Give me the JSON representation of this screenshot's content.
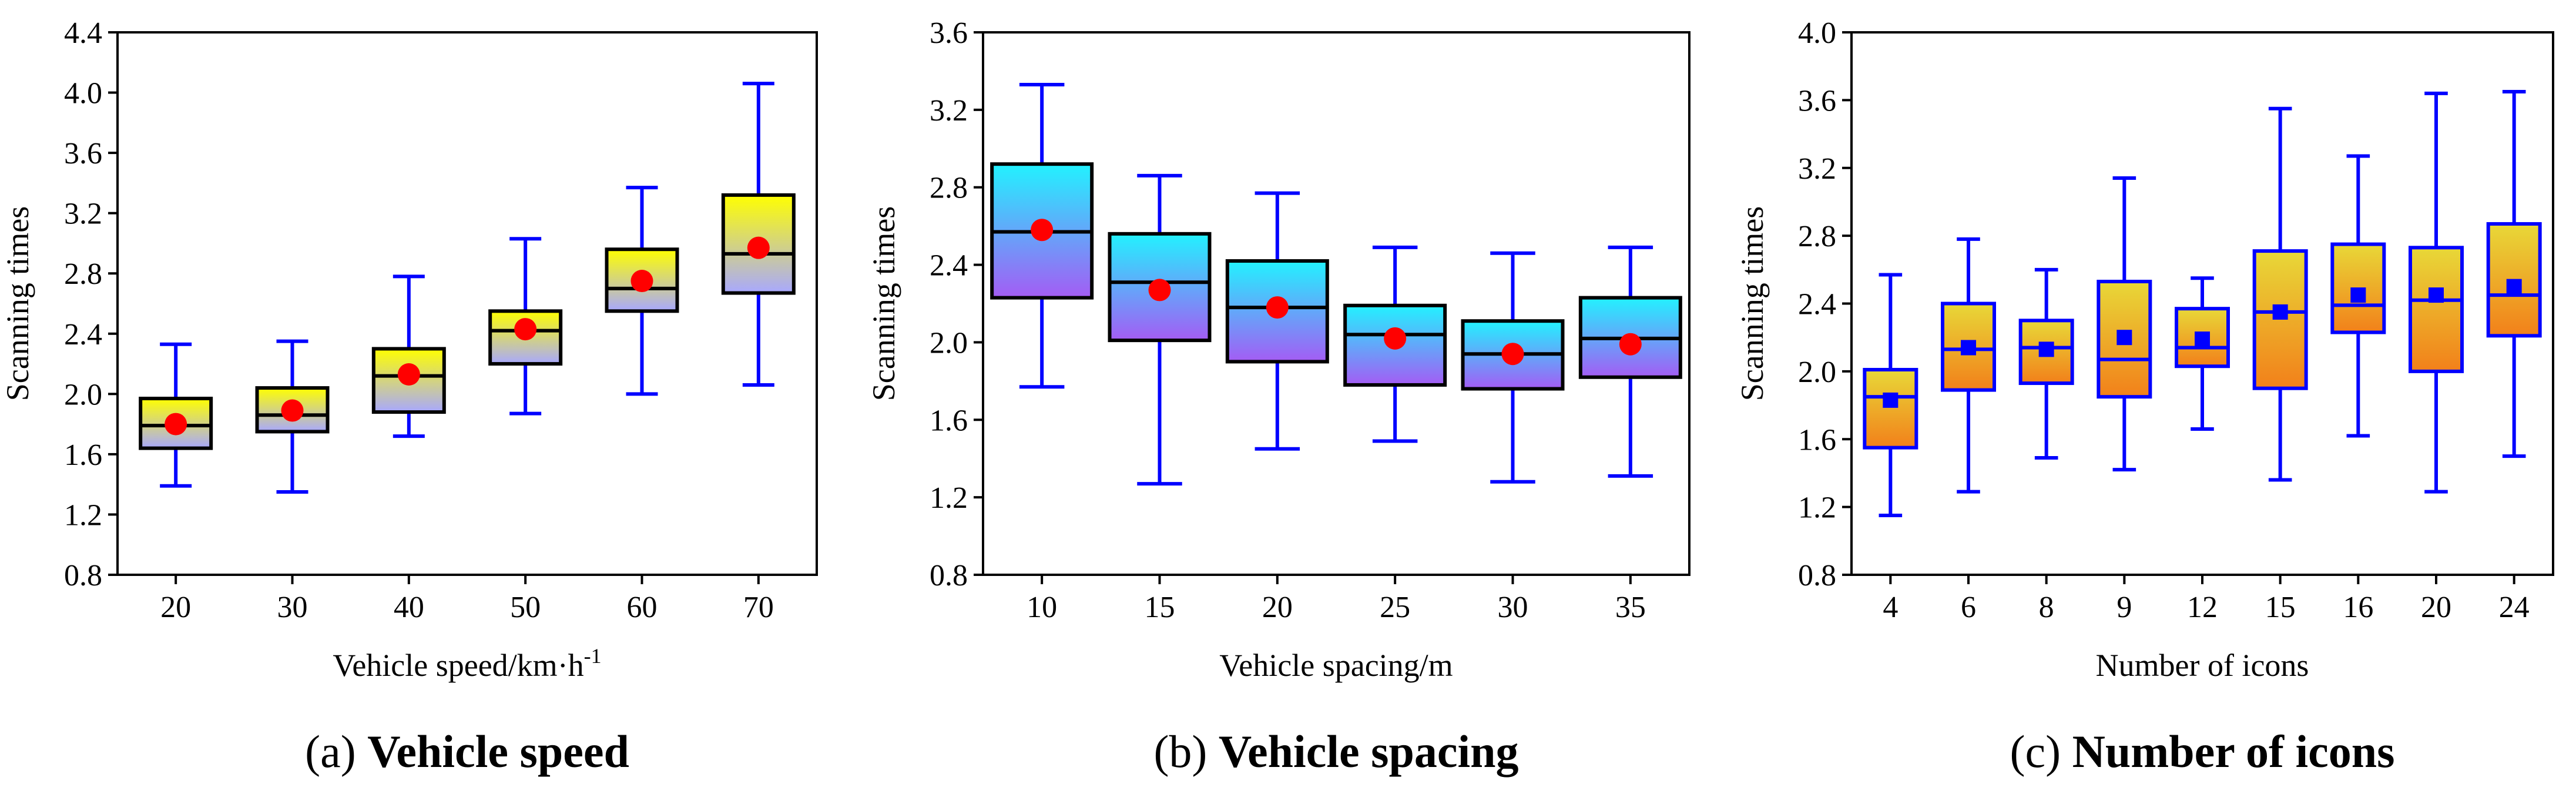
{
  "chart_data": [
    {
      "type": "box",
      "panel_label": "(a)",
      "caption": "Vehicle speed",
      "xlabel": "Vehicle speed/km·h",
      "xlabel_superscript": "-1",
      "ylabel": "Scanning times",
      "ylim": [
        0.8,
        4.4
      ],
      "yticks": [
        "0.8",
        "1.2",
        "1.6",
        "2.0",
        "2.4",
        "2.8",
        "3.2",
        "3.6",
        "4.0",
        "4.4"
      ],
      "categories": [
        "20",
        "30",
        "40",
        "50",
        "60",
        "70"
      ],
      "boxes": [
        {
          "min": 1.39,
          "q1": 1.64,
          "median": 1.79,
          "q3": 1.97,
          "max": 2.33,
          "mean": 1.8
        },
        {
          "min": 1.35,
          "q1": 1.75,
          "median": 1.86,
          "q3": 2.04,
          "max": 2.35,
          "mean": 1.89
        },
        {
          "min": 1.72,
          "q1": 1.88,
          "median": 2.12,
          "q3": 2.3,
          "max": 2.78,
          "mean": 2.13
        },
        {
          "min": 1.87,
          "q1": 2.2,
          "median": 2.42,
          "q3": 2.55,
          "max": 3.03,
          "mean": 2.43
        },
        {
          "min": 2.0,
          "q1": 2.55,
          "median": 2.7,
          "q3": 2.96,
          "max": 3.37,
          "mean": 2.75
        },
        {
          "min": 2.06,
          "q1": 2.67,
          "median": 2.93,
          "q3": 3.32,
          "max": 4.06,
          "mean": 2.97
        }
      ],
      "box_fill_top": "#ffff00",
      "box_fill_bottom": "#a8a8ff",
      "box_stroke": "#000000",
      "whisker_color": "#0000ff",
      "mean_marker": "circle",
      "mean_color": "#ff0000"
    },
    {
      "type": "box",
      "panel_label": "(b)",
      "caption": "Vehicle spacing",
      "xlabel": "Vehicle spacing/m",
      "ylabel": "Scanning times",
      "ylim": [
        0.8,
        3.6
      ],
      "yticks": [
        "0.8",
        "1.2",
        "1.6",
        "2.0",
        "2.4",
        "2.8",
        "3.2",
        "3.6"
      ],
      "categories": [
        "10",
        "15",
        "20",
        "25",
        "30",
        "35"
      ],
      "boxes": [
        {
          "min": 1.77,
          "q1": 2.23,
          "median": 2.57,
          "q3": 2.92,
          "max": 3.33,
          "mean": 2.58
        },
        {
          "min": 1.27,
          "q1": 2.01,
          "median": 2.31,
          "q3": 2.56,
          "max": 2.86,
          "mean": 2.27
        },
        {
          "min": 1.45,
          "q1": 1.9,
          "median": 2.18,
          "q3": 2.42,
          "max": 2.77,
          "mean": 2.18
        },
        {
          "min": 1.49,
          "q1": 1.78,
          "median": 2.04,
          "q3": 2.19,
          "max": 2.49,
          "mean": 2.02
        },
        {
          "min": 1.28,
          "q1": 1.76,
          "median": 1.94,
          "q3": 2.11,
          "max": 2.46,
          "mean": 1.94
        },
        {
          "min": 1.31,
          "q1": 1.82,
          "median": 2.02,
          "q3": 2.23,
          "max": 2.49,
          "mean": 1.99
        }
      ],
      "box_fill_top": "#22f2ff",
      "box_fill_bottom": "#a45cf4",
      "box_stroke": "#000000",
      "whisker_color": "#0000ff",
      "mean_marker": "circle",
      "mean_color": "#ff0000"
    },
    {
      "type": "box",
      "panel_label": "(c)",
      "caption": "Number of icons",
      "xlabel": "Number of icons",
      "ylabel": "Scanning times",
      "ylim": [
        0.8,
        4.0
      ],
      "yticks": [
        "0.8",
        "1.2",
        "1.6",
        "2.0",
        "2.4",
        "2.8",
        "3.2",
        "3.6",
        "4.0"
      ],
      "categories": [
        "4",
        "6",
        "8",
        "9",
        "12",
        "15",
        "16",
        "20",
        "24"
      ],
      "boxes": [
        {
          "min": 1.15,
          "q1": 1.55,
          "median": 1.85,
          "q3": 2.01,
          "max": 2.57,
          "mean": 1.83
        },
        {
          "min": 1.29,
          "q1": 1.89,
          "median": 2.13,
          "q3": 2.4,
          "max": 2.78,
          "mean": 2.14
        },
        {
          "min": 1.49,
          "q1": 1.93,
          "median": 2.14,
          "q3": 2.3,
          "max": 2.6,
          "mean": 2.13
        },
        {
          "min": 1.42,
          "q1": 1.85,
          "median": 2.07,
          "q3": 2.53,
          "max": 3.14,
          "mean": 2.2
        },
        {
          "min": 1.66,
          "q1": 2.03,
          "median": 2.14,
          "q3": 2.37,
          "max": 2.55,
          "mean": 2.19
        },
        {
          "min": 1.36,
          "q1": 1.9,
          "median": 2.35,
          "q3": 2.71,
          "max": 3.55,
          "mean": 2.35
        },
        {
          "min": 1.62,
          "q1": 2.23,
          "median": 2.39,
          "q3": 2.75,
          "max": 3.27,
          "mean": 2.45
        },
        {
          "min": 1.29,
          "q1": 2.0,
          "median": 2.42,
          "q3": 2.73,
          "max": 3.64,
          "mean": 2.45
        },
        {
          "min": 1.5,
          "q1": 2.21,
          "median": 2.45,
          "q3": 2.87,
          "max": 3.65,
          "mean": 2.5
        }
      ],
      "box_fill_top": "#e8d838",
      "box_fill_bottom": "#f2801a",
      "box_stroke": "#0000ff",
      "whisker_color": "#0000ff",
      "mean_marker": "square",
      "mean_color": "#0000ff"
    }
  ]
}
